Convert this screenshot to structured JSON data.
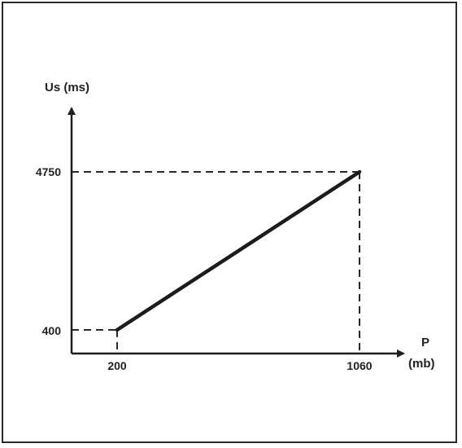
{
  "chart_data": {
    "type": "line",
    "xlabel_line1": "P",
    "xlabel_line2": "(mb)",
    "ylabel": "Us (ms)",
    "x_ticks": [
      "200",
      "1060"
    ],
    "y_ticks": [
      "4750",
      "400"
    ],
    "series": [
      {
        "points": [
          {
            "x": 200,
            "y": 400
          },
          {
            "x": 1060,
            "y": 4750
          }
        ]
      }
    ],
    "guides": [
      {
        "x": 200,
        "y": 400
      },
      {
        "x": 1060,
        "y": 4750
      }
    ],
    "grid": false
  }
}
